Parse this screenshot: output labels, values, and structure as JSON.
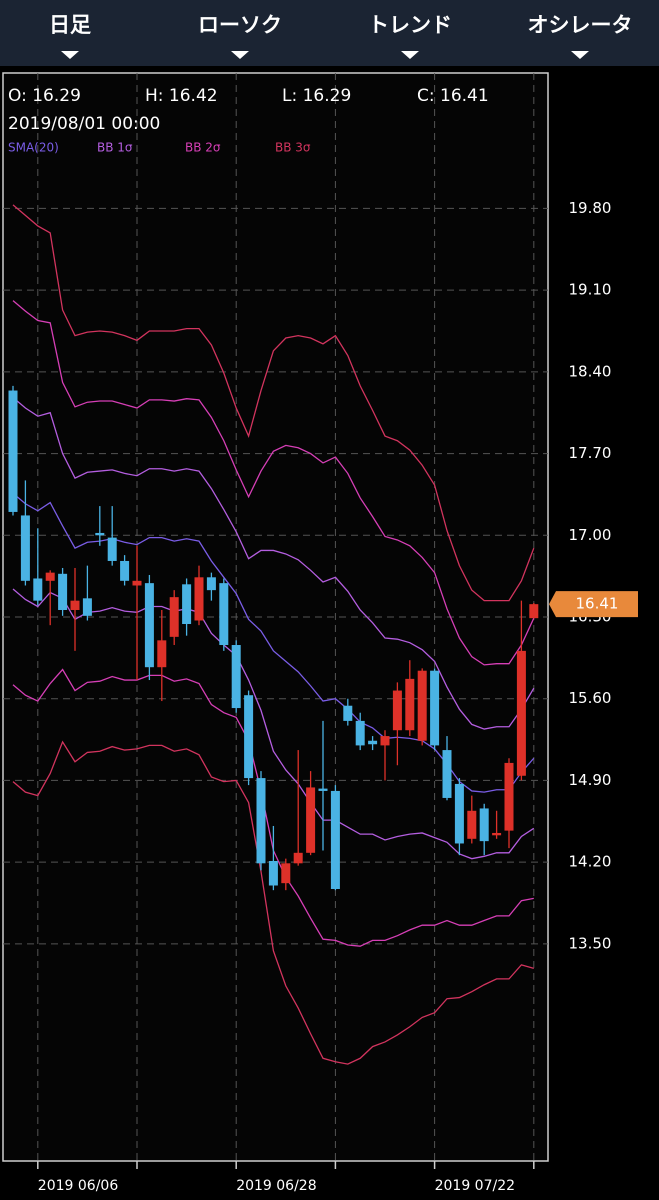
{
  "menu": [
    "日足",
    "ローソク",
    "トレンド",
    "オシレータ"
  ],
  "info": {
    "ohlc": [
      "O: 16.29",
      "H: 16.42",
      "L: 16.29",
      "C: 16.41"
    ],
    "datetime": "2019/08/01 00:00"
  },
  "chart_data": {
    "type": "candlestick",
    "categories": [
      null,
      null,
      "2019 06/06",
      null,
      null,
      null,
      null,
      null,
      null,
      null,
      null,
      null,
      null,
      null,
      null,
      null,
      null,
      null,
      "2019 06/28",
      null,
      null,
      null,
      null,
      null,
      null,
      null,
      null,
      null,
      null,
      null,
      null,
      null,
      null,
      null,
      "2019 07/22",
      null,
      null,
      null,
      null,
      null,
      null,
      null,
      null
    ],
    "open": [
      18.24,
      17.17,
      16.63,
      16.61,
      16.67,
      16.36,
      16.46,
      17.02,
      16.98,
      16.78,
      16.57,
      16.59,
      15.87,
      16.13,
      16.58,
      16.27,
      16.64,
      16.59,
      16.06,
      15.63,
      14.92,
      14.21,
      14.02,
      14.19,
      14.28,
      14.83,
      14.81,
      15.54,
      15.41,
      15.24,
      15.2,
      15.33,
      15.33,
      15.24,
      15.84,
      15.16,
      14.87,
      14.4,
      14.66,
      14.43,
      14.47,
      14.94,
      16.29
    ],
    "high": [
      18.28,
      17.47,
      17.06,
      16.7,
      16.72,
      16.72,
      16.74,
      17.25,
      17.25,
      16.83,
      16.91,
      16.66,
      16.36,
      16.53,
      16.63,
      16.74,
      16.68,
      16.63,
      16.1,
      15.67,
      14.98,
      14.51,
      14.23,
      15.16,
      14.98,
      15.41,
      14.86,
      15.6,
      15.48,
      15.28,
      15.33,
      15.74,
      15.93,
      15.86,
      15.86,
      15.28,
      14.92,
      14.77,
      14.7,
      14.64,
      15.09,
      16.44,
      16.42
    ],
    "low": [
      17.17,
      16.57,
      16.4,
      16.23,
      16.31,
      16.01,
      16.27,
      16.91,
      16.74,
      16.57,
      15.76,
      15.76,
      15.58,
      16.06,
      16.14,
      16.23,
      16.44,
      16.01,
      15.48,
      14.86,
      14.13,
      13.96,
      13.96,
      14.17,
      14.26,
      14.3,
      13.96,
      15.37,
      15.16,
      15.16,
      14.9,
      15.03,
      15.28,
      15.2,
      15.16,
      14.73,
      14.26,
      14.36,
      14.26,
      14.4,
      14.32,
      14.9,
      16.29
    ],
    "close": [
      17.2,
      16.61,
      16.44,
      16.68,
      16.36,
      16.44,
      16.31,
      17.0,
      16.78,
      16.61,
      16.61,
      15.87,
      16.1,
      16.47,
      16.24,
      16.64,
      16.53,
      16.06,
      15.52,
      14.92,
      14.19,
      14.0,
      14.19,
      14.28,
      14.84,
      14.81,
      13.97,
      15.41,
      15.2,
      15.21,
      15.28,
      15.67,
      15.77,
      15.84,
      15.2,
      14.75,
      14.36,
      14.64,
      14.38,
      14.45,
      15.05,
      16.01,
      16.41
    ],
    "up_color": "#de3129",
    "down_color": "#4ab3e4",
    "price_tag_color": "#e8893b",
    "indicators": [
      {
        "name": "SMA(20)",
        "color": "#7a5de6",
        "lines": [
          [
            17.36,
            17.27,
            17.21,
            17.28,
            17.08,
            16.89,
            16.94,
            16.95,
            16.97,
            16.94,
            16.92,
            16.98,
            16.98,
            16.95,
            16.97,
            16.95,
            16.78,
            16.64,
            16.5,
            16.28,
            16.18,
            16.01,
            15.92,
            15.83,
            15.71,
            15.58,
            15.6,
            15.51,
            15.4,
            15.35,
            15.26,
            15.27,
            15.26,
            15.24,
            15.17,
            15.04,
            14.89,
            14.81,
            14.8,
            14.82,
            14.82,
            14.97,
            15.09
          ]
        ]
      },
      {
        "name": "BB 1σ",
        "color": "#b45ee0",
        "lines": [
          [
            18.18,
            18.09,
            18.02,
            18.05,
            17.7,
            17.49,
            17.54,
            17.55,
            17.56,
            17.53,
            17.51,
            17.57,
            17.57,
            17.55,
            17.57,
            17.55,
            17.4,
            17.22,
            17.03,
            16.8,
            16.87,
            16.87,
            16.84,
            16.79,
            16.7,
            16.6,
            16.64,
            16.52,
            16.36,
            16.25,
            16.12,
            16.11,
            16.08,
            16.02,
            15.92,
            15.7,
            15.51,
            15.38,
            15.34,
            15.36,
            15.36,
            15.51,
            15.69
          ],
          [
            16.54,
            16.45,
            16.39,
            16.51,
            16.46,
            16.28,
            16.34,
            16.35,
            16.38,
            16.35,
            16.34,
            16.39,
            16.39,
            16.35,
            16.37,
            16.34,
            16.16,
            16.06,
            15.97,
            15.76,
            15.5,
            15.15,
            14.99,
            14.87,
            14.71,
            14.56,
            14.56,
            14.5,
            14.44,
            14.44,
            14.39,
            14.42,
            14.44,
            14.45,
            14.41,
            14.37,
            14.27,
            14.23,
            14.25,
            14.28,
            14.28,
            14.42,
            14.49
          ]
        ]
      },
      {
        "name": "BB 2σ",
        "color": "#d63fb6",
        "lines": [
          [
            19.01,
            18.92,
            18.84,
            18.82,
            18.31,
            18.1,
            18.14,
            18.15,
            18.15,
            18.12,
            18.09,
            18.16,
            18.16,
            18.15,
            18.17,
            18.16,
            18.01,
            17.81,
            17.56,
            17.33,
            17.55,
            17.72,
            17.77,
            17.75,
            17.7,
            17.62,
            17.67,
            17.53,
            17.32,
            17.16,
            16.99,
            16.96,
            16.91,
            16.81,
            16.68,
            16.37,
            16.12,
            15.96,
            15.89,
            15.9,
            15.9,
            16.06,
            16.29
          ],
          [
            15.72,
            15.63,
            15.58,
            15.73,
            15.85,
            15.67,
            15.74,
            15.75,
            15.79,
            15.76,
            15.76,
            15.8,
            15.8,
            15.75,
            15.77,
            15.73,
            15.55,
            15.48,
            15.44,
            15.24,
            14.81,
            14.3,
            14.07,
            13.91,
            13.72,
            13.54,
            13.53,
            13.49,
            13.48,
            13.53,
            13.53,
            13.57,
            13.62,
            13.66,
            13.66,
            13.7,
            13.66,
            13.66,
            13.7,
            13.74,
            13.74,
            13.87,
            13.89
          ]
        ]
      },
      {
        "name": "BB 3σ",
        "color": "#d2345e",
        "lines": [
          [
            19.83,
            19.74,
            19.65,
            19.59,
            18.93,
            18.71,
            18.74,
            18.75,
            18.74,
            18.71,
            18.67,
            18.75,
            18.75,
            18.75,
            18.77,
            18.77,
            18.63,
            18.39,
            18.09,
            17.85,
            18.24,
            18.58,
            18.69,
            18.71,
            18.69,
            18.64,
            18.71,
            18.54,
            18.28,
            18.07,
            17.85,
            17.81,
            17.73,
            17.6,
            17.43,
            17.04,
            16.74,
            16.53,
            16.44,
            16.44,
            16.44,
            16.61,
            16.89
          ],
          [
            14.89,
            14.8,
            14.77,
            14.96,
            15.23,
            15.06,
            15.14,
            15.15,
            15.19,
            15.16,
            15.17,
            15.2,
            15.2,
            15.15,
            15.17,
            15.12,
            14.93,
            14.89,
            14.9,
            14.71,
            14.12,
            13.44,
            13.14,
            12.95,
            12.73,
            12.52,
            12.49,
            12.47,
            12.52,
            12.62,
            12.66,
            12.72,
            12.79,
            12.87,
            12.91,
            13.03,
            13.04,
            13.09,
            13.15,
            13.2,
            13.2,
            13.32,
            13.29
          ]
        ]
      }
    ],
    "ylim": [
      11.64,
      20.96
    ],
    "yticks": [
      {
        "value": 13.5,
        "label": "13.50"
      },
      {
        "value": 14.2,
        "label": "14.20"
      },
      {
        "value": 14.9,
        "label": "14.90"
      },
      {
        "value": 15.6,
        "label": "15.60"
      },
      {
        "value": 16.3,
        "label": "16.30"
      },
      {
        "value": 17,
        "label": "17.00"
      },
      {
        "value": 17.7,
        "label": "17.70"
      },
      {
        "value": 18.4,
        "label": "18.40"
      },
      {
        "value": 19.1,
        "label": "19.10"
      },
      {
        "value": 19.8,
        "label": "19.80"
      }
    ],
    "grid": true
  }
}
